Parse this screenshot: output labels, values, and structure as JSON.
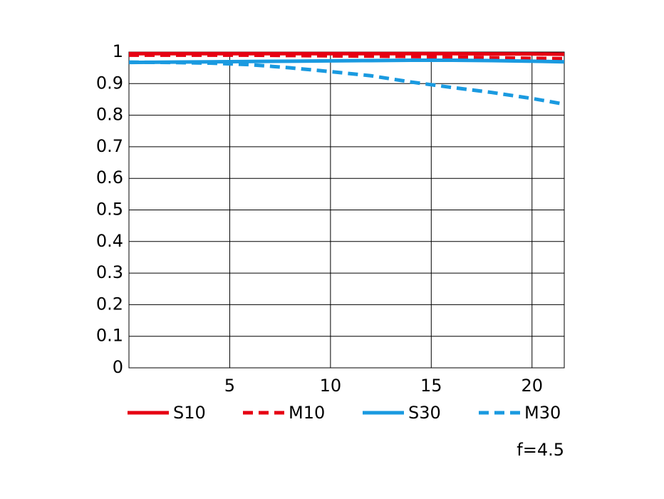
{
  "chart_data": {
    "type": "line",
    "x": [
      0,
      2,
      4,
      6,
      8,
      10,
      12,
      14,
      16,
      18,
      20,
      21.6
    ],
    "series": [
      {
        "name": "S10",
        "color": "#e60012",
        "dashed": false,
        "values": [
          0.995,
          0.995,
          0.995,
          0.995,
          0.995,
          0.995,
          0.995,
          0.995,
          0.995,
          0.994,
          0.994,
          0.993
        ]
      },
      {
        "name": "M10",
        "color": "#e60012",
        "dashed": true,
        "values": [
          0.99,
          0.99,
          0.99,
          0.99,
          0.989,
          0.988,
          0.987,
          0.986,
          0.984,
          0.982,
          0.98,
          0.979
        ]
      },
      {
        "name": "S30",
        "color": "#1a9ae0",
        "dashed": false,
        "values": [
          0.967,
          0.968,
          0.969,
          0.97,
          0.971,
          0.972,
          0.973,
          0.974,
          0.974,
          0.973,
          0.971,
          0.969
        ]
      },
      {
        "name": "M30",
        "color": "#1a9ae0",
        "dashed": true,
        "values": [
          0.968,
          0.967,
          0.965,
          0.96,
          0.95,
          0.938,
          0.925,
          0.905,
          0.888,
          0.872,
          0.853,
          0.835
        ]
      }
    ],
    "xlim": [
      0,
      21.6
    ],
    "xticks": [
      5,
      10,
      15,
      20
    ],
    "ylim": [
      0,
      1
    ],
    "yticks": [
      0,
      0.1,
      0.2,
      0.3,
      0.4,
      0.5,
      0.6,
      0.7,
      0.8,
      0.9,
      1
    ],
    "grid": true,
    "annotation": "f=4.5"
  }
}
